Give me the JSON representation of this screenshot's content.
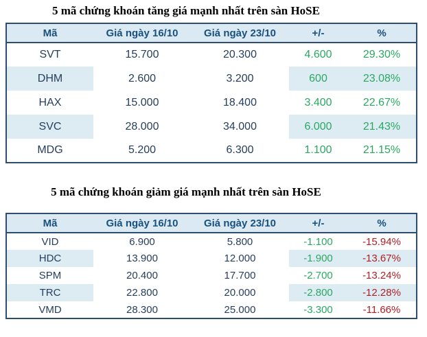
{
  "colors": {
    "header_bg": "#dbe9f2",
    "stripe_bg": "#ddecf3",
    "border": "#2c4d6e",
    "header_text": "#19517e",
    "data_text": "#263e5d",
    "green": "#2aa862",
    "red": "#b01e23"
  },
  "gainers": {
    "title": "5 mã chứng khoán tăng giá mạnh nhất trên sàn HoSE",
    "columns": [
      "Mã",
      "Giá ngày 16/10",
      "Giá ngày 23/10",
      "+/-",
      "%"
    ],
    "rows": [
      {
        "code": "SVT",
        "price_old": "15.700",
        "price_new": "20.300",
        "change": "4.600",
        "pct": "29.30%"
      },
      {
        "code": "DHM",
        "price_old": "2.600",
        "price_new": "3.200",
        "change": "600",
        "pct": "23.08%"
      },
      {
        "code": "HAX",
        "price_old": "15.000",
        "price_new": "18.400",
        "change": "3.400",
        "pct": "22.67%"
      },
      {
        "code": "SVC",
        "price_old": "28.000",
        "price_new": "34.000",
        "change": "6.000",
        "pct": "21.43%"
      },
      {
        "code": "MDG",
        "price_old": "5.200",
        "price_new": "6.300",
        "change": "1.100",
        "pct": "21.15%"
      }
    ]
  },
  "losers": {
    "title": "5 mã chứng khoán giảm giá mạnh nhất trên sàn HoSE",
    "columns": [
      "Mã",
      "Giá ngày 16/10",
      "Giá ngày 23/10",
      "+/-",
      "%"
    ],
    "rows": [
      {
        "code": "VID",
        "price_old": "6.900",
        "price_new": "5.800",
        "change": "-1.100",
        "pct": "-15.94%"
      },
      {
        "code": "HDC",
        "price_old": "13.900",
        "price_new": "12.000",
        "change": "-1.900",
        "pct": "-13.67%"
      },
      {
        "code": "SPM",
        "price_old": "20.400",
        "price_new": "17.700",
        "change": "-2.700",
        "pct": "-13.24%"
      },
      {
        "code": "TRC",
        "price_old": "22.800",
        "price_new": "20.000",
        "change": "-2.800",
        "pct": "-12.28%"
      },
      {
        "code": "VMD",
        "price_old": "28.300",
        "price_new": "25.000",
        "change": "-3.300",
        "pct": "-11.66%"
      }
    ]
  }
}
